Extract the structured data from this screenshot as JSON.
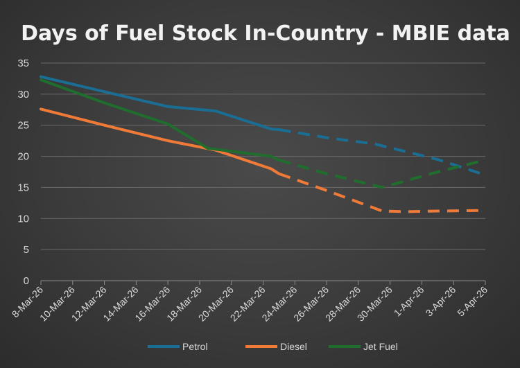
{
  "chart_data": {
    "type": "line",
    "title": "Days of Fuel Stock In-Country - MBIE data",
    "xlabel": "",
    "ylabel": "",
    "ylim": [
      0,
      35
    ],
    "yticks": [
      0,
      5,
      10,
      15,
      20,
      25,
      30,
      35
    ],
    "grid": true,
    "legend_position": "bottom",
    "x_labels": [
      "8-Mar-26",
      "10-Mar-26",
      "12-Mar-26",
      "14-Mar-26",
      "16-Mar-26",
      "18-Mar-26",
      "20-Mar-26",
      "22-Mar-26",
      "24-Mar-26",
      "26-Mar-26",
      "28-Mar-26",
      "30-Mar-26",
      "1-Apr-26",
      "3-Apr-26",
      "5-Apr-26"
    ],
    "x_label_days": [
      0,
      2,
      4,
      6,
      8,
      10,
      12,
      14,
      16,
      18,
      20,
      22,
      24,
      26,
      28
    ],
    "x_day_range": [
      0,
      28
    ],
    "series": [
      {
        "name": "Petrol",
        "color": "#1a6e94",
        "actual": [
          [
            0,
            32.8
          ],
          [
            4,
            30.4
          ],
          [
            8,
            28.0
          ],
          [
            11,
            27.3
          ],
          [
            14.5,
            24.4
          ],
          [
            15,
            24.3
          ]
        ],
        "projected": [
          [
            15,
            24.3
          ],
          [
            18,
            23.0
          ],
          [
            21,
            22.0
          ],
          [
            25,
            19.5
          ],
          [
            28,
            17.0
          ]
        ]
      },
      {
        "name": "Diesel",
        "color": "#f07b39",
        "actual": [
          [
            0,
            27.6
          ],
          [
            4,
            25.0
          ],
          [
            8,
            22.5
          ],
          [
            11,
            21.0
          ],
          [
            14.5,
            18.0
          ],
          [
            15,
            17.2
          ]
        ],
        "projected": [
          [
            15,
            17.2
          ],
          [
            18,
            14.5
          ],
          [
            21.5,
            11.2
          ],
          [
            23,
            11.1
          ],
          [
            25,
            11.2
          ],
          [
            28,
            11.3
          ]
        ]
      },
      {
        "name": "Jet Fuel",
        "color": "#1f6e2e",
        "actual": [
          [
            0,
            32.3
          ],
          [
            4,
            28.6
          ],
          [
            8,
            25.2
          ],
          [
            10.5,
            21.3
          ],
          [
            14.5,
            20.0
          ],
          [
            15,
            19.4
          ]
        ],
        "projected": [
          [
            15,
            19.4
          ],
          [
            18,
            17.2
          ],
          [
            21.5,
            15.0
          ],
          [
            25,
            17.5
          ],
          [
            28,
            19.4
          ]
        ]
      }
    ]
  }
}
